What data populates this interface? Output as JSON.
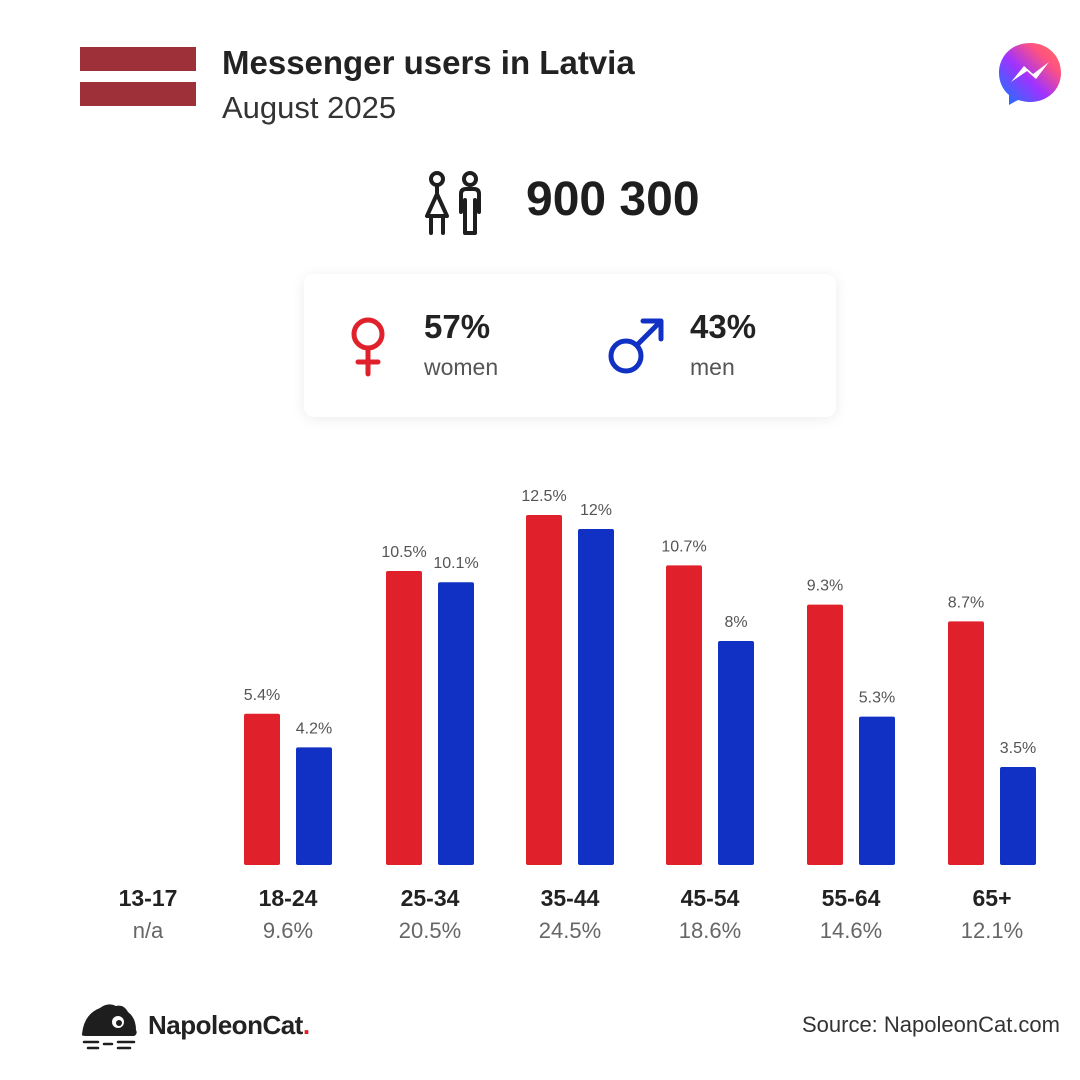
{
  "header": {
    "title": "Messenger users in Latvia",
    "subtitle": "August 2025",
    "flag_colors": [
      "#9e3039",
      "#ffffff",
      "#9e3039"
    ],
    "brand_icon": "messenger-logo-icon"
  },
  "summary": {
    "total_users": "900 300",
    "icon": "people-icon"
  },
  "gender": {
    "women": {
      "pct": "57%",
      "label": "women",
      "color": "#e0202a",
      "icon": "female-symbol-icon"
    },
    "men": {
      "pct": "43%",
      "label": "men",
      "color": "#1130c4",
      "icon": "male-symbol-icon"
    }
  },
  "chart_data": {
    "type": "bar",
    "categories": [
      "13-17",
      "18-24",
      "25-34",
      "35-44",
      "45-54",
      "55-64",
      "65+"
    ],
    "category_totals": [
      "n/a",
      "9.6%",
      "20.5%",
      "24.5%",
      "18.6%",
      "14.6%",
      "12.1%"
    ],
    "series": [
      {
        "values": [
          null,
          5.4,
          10.5,
          12.5,
          10.7,
          9.3,
          8.7
        ],
        "labels": [
          "",
          "5.4%",
          "10.5%",
          "12.5%",
          "10.7%",
          "9.3%",
          "8.7%"
        ],
        "color": "#e0202a"
      },
      {
        "values": [
          null,
          4.2,
          10.1,
          12,
          8,
          5.3,
          3.5
        ],
        "labels": [
          "",
          "4.2%",
          "10.1%",
          "12%",
          "8%",
          "5.3%",
          "3.5%"
        ],
        "color": "#1130c4"
      }
    ],
    "ylim": [
      0,
      12.5
    ],
    "grid": false,
    "legend": "none"
  },
  "footer": {
    "brand_name": "NapoleonCat",
    "brand_dot": ".",
    "brand_icon": "napoleoncat-logo-icon",
    "source": "Source: NapoleonCat.com"
  }
}
